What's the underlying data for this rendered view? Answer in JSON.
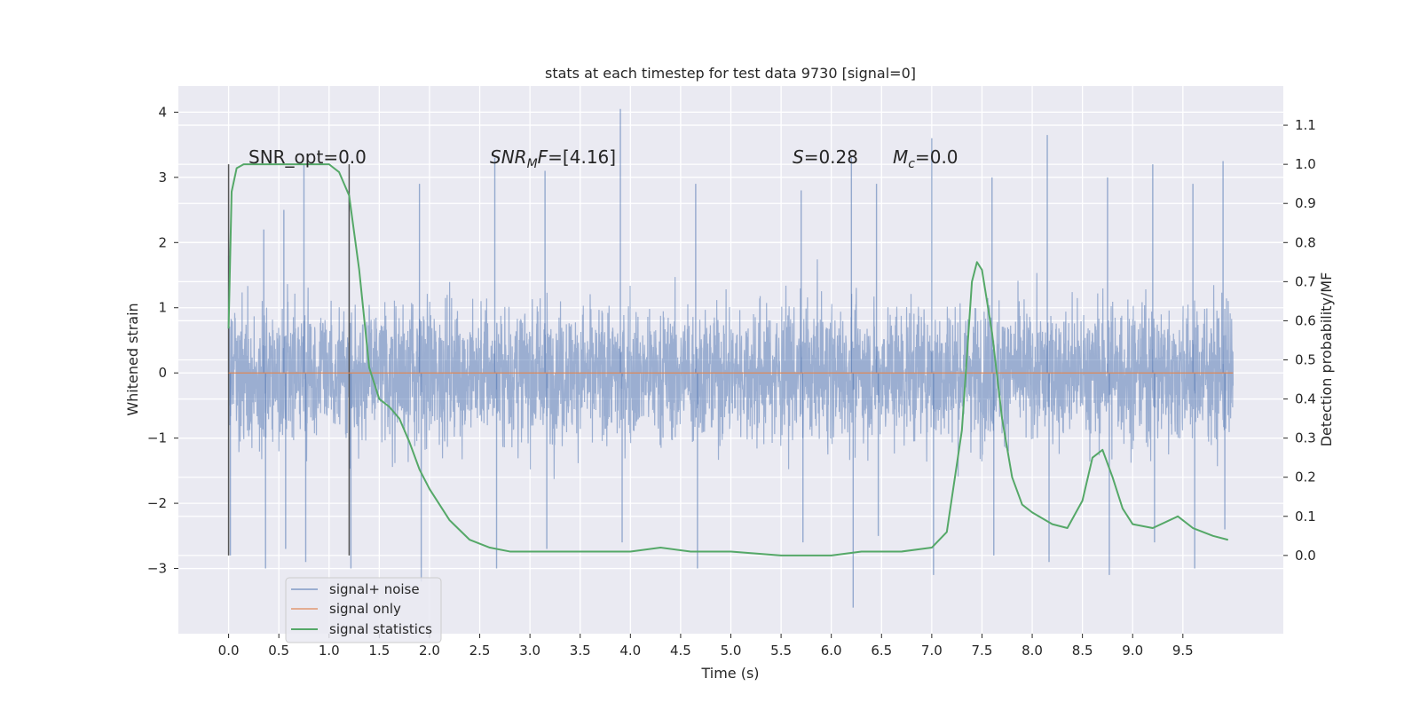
{
  "chart_data": {
    "type": "line",
    "title": "stats at each timestep for test data 9730 [signal=0]",
    "xlabel": "Time (s)",
    "ylabel": "Whitened strain",
    "ylabel_right": "Detection probability/MF",
    "xlim": [
      -0.5,
      10.5
    ],
    "ylim": [
      -4.0,
      4.4
    ],
    "ylim_right": [
      -0.2,
      1.2
    ],
    "x_ticks": [
      "0.0",
      "0.5",
      "1.0",
      "1.5",
      "2.0",
      "2.5",
      "3.0",
      "3.5",
      "4.0",
      "4.5",
      "5.0",
      "5.5",
      "6.0",
      "6.5",
      "7.0",
      "7.5",
      "8.0",
      "8.5",
      "9.0",
      "9.5"
    ],
    "y_ticks": [
      "4",
      "3",
      "2",
      "1",
      "0",
      "−1",
      "−2",
      "−3"
    ],
    "y_ticks_right": [
      "1.1",
      "1.0",
      "0.9",
      "0.8",
      "0.7",
      "0.6",
      "0.5",
      "0.4",
      "0.3",
      "0.2",
      "0.1",
      "0.0"
    ],
    "grid": true,
    "legend_position": "lower-left",
    "annotations": {
      "snr_opt": "SNR_opt=0.0",
      "snr_mf_sym": "SNR",
      "snr_mf_sub": "M",
      "snr_mf_sym2": "F",
      "snr_mf_val": "=[4.16]",
      "s_sym": "S",
      "s_val": "=0.28",
      "mc_sym": "M",
      "mc_sub": "c",
      "mc_val": "=0.0"
    },
    "vertical_lines_x": [
      0.0,
      1.2
    ],
    "series": [
      {
        "name": "signal+ noise",
        "color": "#4c72b0",
        "note": "dense whitened noise trace, values roughly between -3.6 and 4.05",
        "x_range": [
          0.0,
          10.0
        ],
        "envelope_peaks": [
          [
            0.0,
            1.8,
            -2.8
          ],
          [
            0.35,
            2.2,
            -3.0
          ],
          [
            0.55,
            2.5,
            -2.7
          ],
          [
            0.75,
            3.2,
            -2.9
          ],
          [
            1.2,
            2.7,
            -3.0
          ],
          [
            1.9,
            2.9,
            -3.2
          ],
          [
            2.65,
            3.3,
            -3.0
          ],
          [
            3.15,
            3.1,
            -2.7
          ],
          [
            3.9,
            4.05,
            -2.6
          ],
          [
            4.65,
            2.9,
            -3.0
          ],
          [
            5.7,
            2.8,
            -2.6
          ],
          [
            6.2,
            3.3,
            -3.6
          ],
          [
            6.45,
            2.9,
            -2.5
          ],
          [
            7.0,
            3.6,
            -3.1
          ],
          [
            7.6,
            3.0,
            -2.8
          ],
          [
            8.15,
            3.65,
            -2.9
          ],
          [
            8.75,
            3.0,
            -3.1
          ],
          [
            9.2,
            3.2,
            -2.6
          ],
          [
            9.6,
            2.9,
            -3.0
          ],
          [
            9.9,
            3.25,
            -2.4
          ]
        ]
      },
      {
        "name": "signal only",
        "color": "#dd8452",
        "x": [
          0.0,
          10.0
        ],
        "y": [
          0.0,
          0.0
        ]
      },
      {
        "name": "signal statistics",
        "color": "#55a868",
        "axis": "right",
        "x": [
          0.0,
          0.03,
          0.08,
          0.15,
          0.25,
          0.4,
          0.6,
          0.8,
          1.0,
          1.1,
          1.2,
          1.3,
          1.4,
          1.5,
          1.6,
          1.7,
          1.8,
          1.9,
          2.0,
          2.2,
          2.4,
          2.6,
          2.8,
          3.0,
          3.5,
          4.0,
          4.3,
          4.6,
          5.0,
          5.5,
          6.0,
          6.3,
          6.7,
          7.0,
          7.15,
          7.3,
          7.4,
          7.45,
          7.5,
          7.6,
          7.7,
          7.8,
          7.9,
          8.0,
          8.2,
          8.35,
          8.5,
          8.6,
          8.7,
          8.8,
          8.9,
          9.0,
          9.2,
          9.45,
          9.6,
          9.8,
          9.95
        ],
        "y": [
          0.58,
          0.93,
          0.99,
          1.0,
          1.0,
          1.0,
          1.0,
          1.0,
          1.0,
          0.98,
          0.92,
          0.73,
          0.48,
          0.4,
          0.38,
          0.35,
          0.29,
          0.22,
          0.17,
          0.09,
          0.04,
          0.02,
          0.01,
          0.01,
          0.01,
          0.01,
          0.02,
          0.01,
          0.01,
          0.0,
          0.0,
          0.01,
          0.01,
          0.02,
          0.06,
          0.32,
          0.7,
          0.75,
          0.73,
          0.57,
          0.35,
          0.2,
          0.13,
          0.11,
          0.08,
          0.07,
          0.14,
          0.25,
          0.27,
          0.2,
          0.12,
          0.08,
          0.07,
          0.1,
          0.07,
          0.05,
          0.04
        ]
      }
    ]
  }
}
